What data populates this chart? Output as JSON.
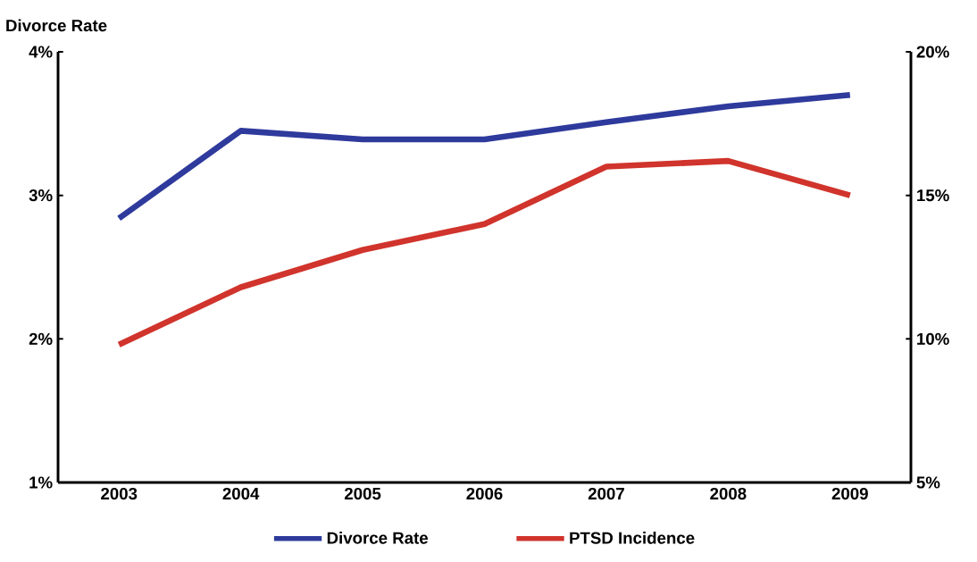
{
  "chart_data": {
    "type": "line",
    "ylabel": "Divorce Rate",
    "categories": [
      "2003",
      "2004",
      "2005",
      "2006",
      "2007",
      "2008",
      "2009"
    ],
    "series": [
      {
        "name": "Divorce Rate",
        "color": "#2e3a9c",
        "values": [
          2.84,
          3.45,
          3.39,
          3.39,
          3.51,
          3.62,
          3.7
        ]
      },
      {
        "name": "PTSD Incidence",
        "color": "#d0342c",
        "axis": "y2",
        "values": [
          9.8,
          11.8,
          13.1,
          14.0,
          16.0,
          16.2,
          15.0
        ]
      }
    ],
    "ylim": [
      1,
      4
    ],
    "yticks": [
      {
        "value": 1,
        "label": "1%"
      },
      {
        "value": 2,
        "label": "2%"
      },
      {
        "value": 3,
        "label": "3%"
      },
      {
        "value": 4,
        "label": "4%"
      }
    ],
    "y2lim": [
      5,
      20
    ],
    "y2ticks": [
      {
        "value": 5,
        "label": "5%"
      },
      {
        "value": 10,
        "label": "10%"
      },
      {
        "value": 15,
        "label": "15%"
      },
      {
        "value": 20,
        "label": "20%"
      }
    ],
    "grid": false,
    "legend": "bottom",
    "marker": "none",
    "line_style": "solid"
  }
}
